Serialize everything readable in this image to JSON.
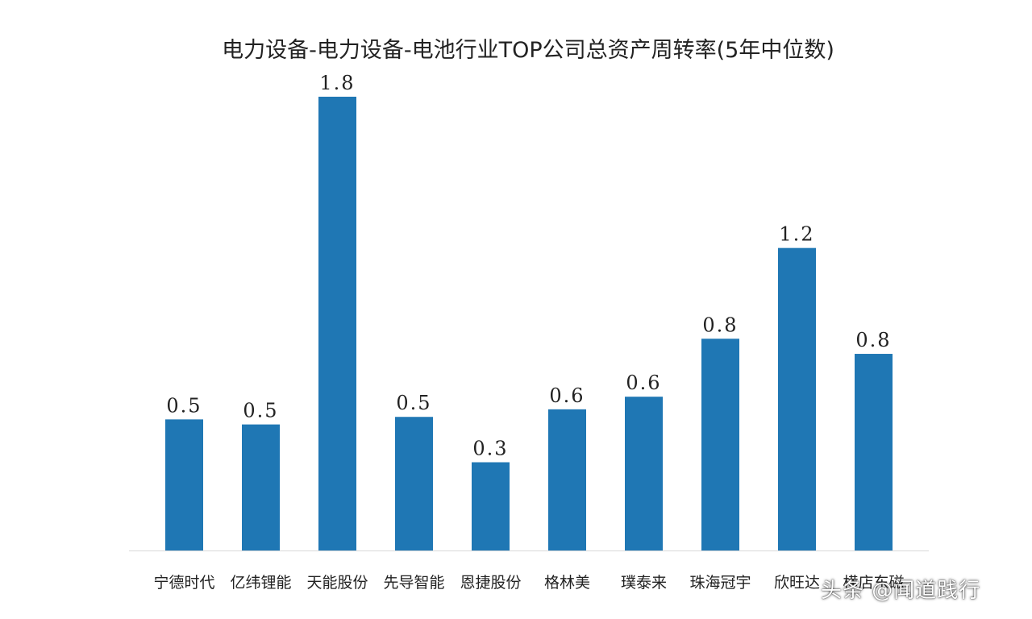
{
  "chart_data": {
    "type": "bar",
    "title": "电力设备-电力设备-电池行业TOP公司总资产周转率(5年中位数)",
    "categories": [
      "宁德时代",
      "亿纬锂能",
      "天能股份",
      "先导智能",
      "恩捷股份",
      "格林美",
      "璞泰来",
      "珠海冠宇",
      "欣旺达",
      "横店东磁"
    ],
    "values": [
      0.5,
      0.5,
      1.8,
      0.5,
      0.3,
      0.6,
      0.6,
      0.8,
      1.2,
      0.8
    ],
    "raw_values": [
      0.52,
      0.5,
      1.8,
      0.53,
      0.35,
      0.56,
      0.61,
      0.84,
      1.2,
      0.78
    ],
    "data_labels": [
      "0.5",
      "0.5",
      "1.8",
      "0.5",
      "0.3",
      "0.6",
      "0.6",
      "0.8",
      "1.2",
      "0.8"
    ],
    "ylim": [
      0,
      1.8
    ],
    "grid": false,
    "legend": "none",
    "bar_color": "#1f77b4",
    "axis_color": "#d9d9d9"
  },
  "watermark": {
    "text": "头条 @闻道践行",
    "icon": "toutiao-logo"
  }
}
